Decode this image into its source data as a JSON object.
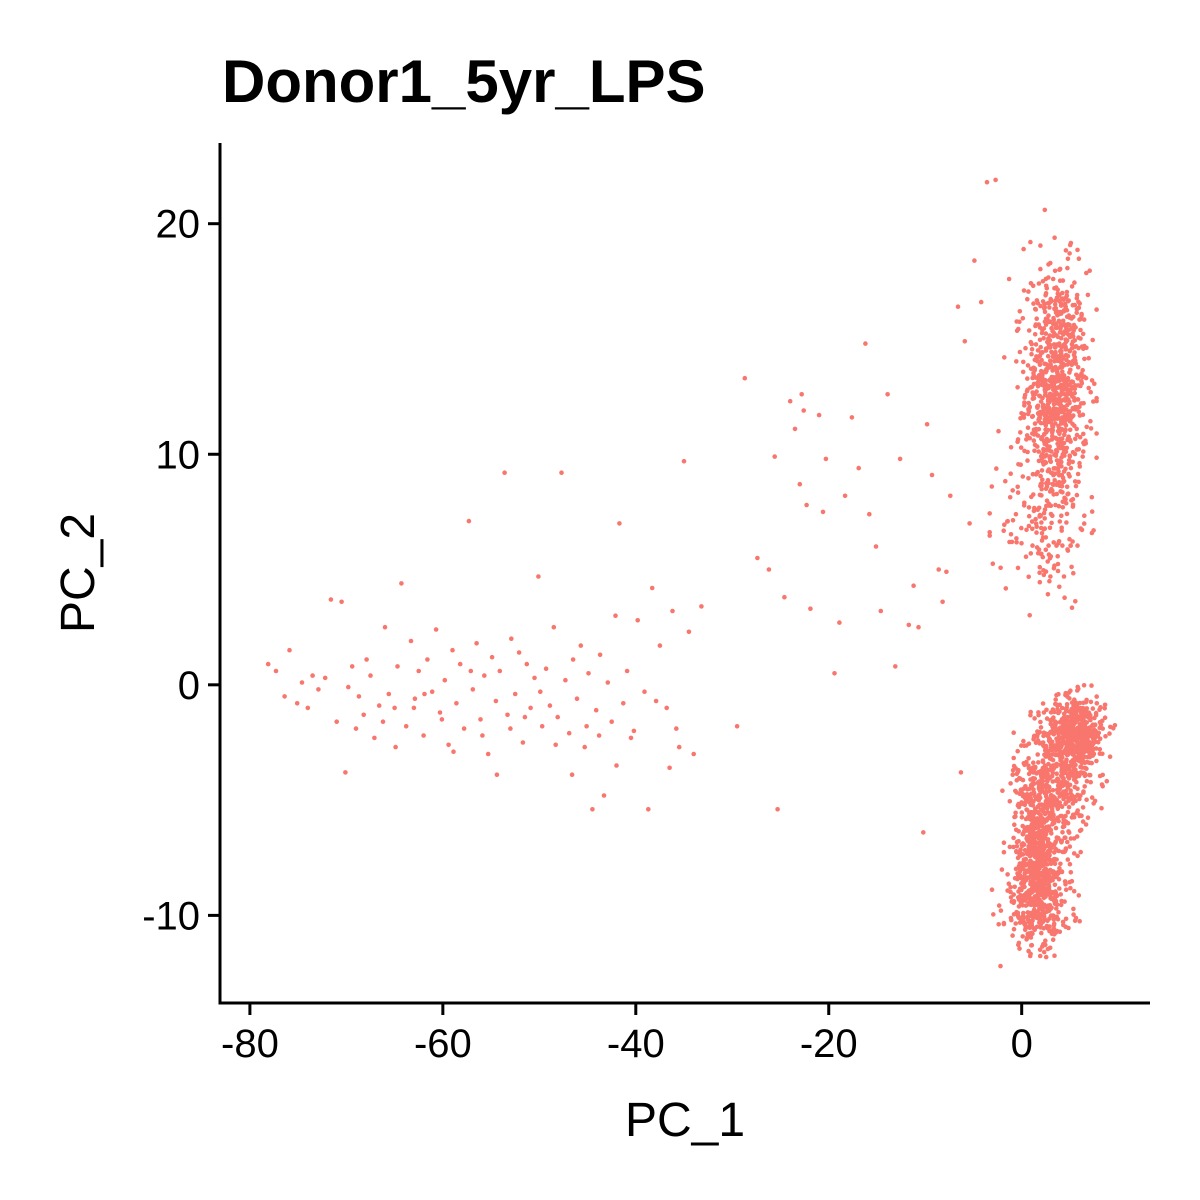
{
  "chart_data": {
    "type": "scatter",
    "title": "Donor1_5yr_LPS",
    "xlabel": "PC_1",
    "ylabel": "PC_2",
    "xlim": [
      -83.1,
      13.3
    ],
    "ylim": [
      -13.8,
      23.5
    ],
    "x_ticks": [
      -80,
      -60,
      -40,
      -20,
      0
    ],
    "y_ticks": [
      -10,
      0,
      10,
      20
    ],
    "x_tick_labels": [
      "-80",
      "-60",
      "-40",
      "-20",
      "0"
    ],
    "y_tick_labels": [
      "-10",
      "0",
      "10",
      "20"
    ],
    "grid": false,
    "legend": "none",
    "point_color": "#F8766D",
    "series": [
      {
        "points": [
          [
            -78.1,
            0.9
          ],
          [
            -77.3,
            0.6
          ],
          [
            -76.4,
            -0.5
          ],
          [
            -75.9,
            1.5
          ],
          [
            -75.1,
            -0.8
          ],
          [
            -74.6,
            0.1
          ],
          [
            -74.0,
            -1.0
          ],
          [
            -73.5,
            0.4
          ],
          [
            -72.9,
            -0.2
          ],
          [
            -72.2,
            0.3
          ],
          [
            -71.6,
            3.7
          ],
          [
            -71.0,
            -1.6
          ],
          [
            -70.5,
            3.6
          ],
          [
            -70.1,
            -3.8
          ],
          [
            -69.8,
            -0.1
          ],
          [
            -69.4,
            0.8
          ],
          [
            -68.7,
            -0.5
          ],
          [
            -68.2,
            -1.3
          ],
          [
            -67.5,
            0.4
          ],
          [
            -67.1,
            -2.3
          ],
          [
            -66.6,
            -0.9
          ],
          [
            -66.0,
            2.5
          ],
          [
            -65.6,
            -0.4
          ],
          [
            -65.0,
            -1.0
          ],
          [
            -64.7,
            0.8
          ],
          [
            -64.3,
            4.4
          ],
          [
            -63.8,
            -1.8
          ],
          [
            -63.3,
            1.9
          ],
          [
            -62.9,
            -0.6
          ],
          [
            -62.5,
            0.6
          ],
          [
            -62.0,
            -2.2
          ],
          [
            -61.6,
            1.1
          ],
          [
            -61.1,
            -0.3
          ],
          [
            -60.7,
            2.4
          ],
          [
            -60.3,
            -1.2
          ],
          [
            -59.8,
            0.2
          ],
          [
            -59.4,
            -2.6
          ],
          [
            -59.0,
            1.5
          ],
          [
            -58.6,
            -0.8
          ],
          [
            -58.2,
            0.9
          ],
          [
            -57.8,
            -1.9
          ],
          [
            -57.3,
            7.1
          ],
          [
            -56.9,
            -0.2
          ],
          [
            -56.5,
            1.8
          ],
          [
            -56.1,
            -1.5
          ],
          [
            -55.7,
            0.4
          ],
          [
            -55.3,
            -3.0
          ],
          [
            -54.9,
            1.2
          ],
          [
            -54.5,
            -0.7
          ],
          [
            -54.1,
            0.6
          ],
          [
            -53.6,
            9.2
          ],
          [
            -53.3,
            -1.3
          ],
          [
            -52.9,
            2.0
          ],
          [
            -52.5,
            -0.4
          ],
          [
            -52.1,
            1.4
          ],
          [
            -51.7,
            -2.5
          ],
          [
            -51.3,
            0.9
          ],
          [
            -50.9,
            -1.0
          ],
          [
            -50.5,
            0.3
          ],
          [
            -50.1,
            4.7
          ],
          [
            -49.7,
            -1.8
          ],
          [
            -49.3,
            0.7
          ],
          [
            -48.9,
            -0.9
          ],
          [
            -48.5,
            2.5
          ],
          [
            -48.1,
            -1.4
          ],
          [
            -47.7,
            9.2
          ],
          [
            -47.3,
            0.2
          ],
          [
            -46.9,
            -2.1
          ],
          [
            -46.5,
            1.1
          ],
          [
            -46.1,
            -0.6
          ],
          [
            -45.7,
            1.7
          ],
          [
            -45.3,
            -2.7
          ],
          [
            -44.9,
            0.5
          ],
          [
            -44.5,
            -5.4
          ],
          [
            -44.1,
            -1.1
          ],
          [
            -43.7,
            1.3
          ],
          [
            -43.3,
            -4.8
          ],
          [
            -42.9,
            0.1
          ],
          [
            -42.5,
            -1.6
          ],
          [
            -42.1,
            3.0
          ],
          [
            -41.7,
            7.0
          ],
          [
            -41.3,
            -0.8
          ],
          [
            -40.9,
            0.6
          ],
          [
            -40.5,
            -2.3
          ],
          [
            -39.8,
            2.8
          ],
          [
            -39.1,
            -0.3
          ],
          [
            -38.7,
            -5.4
          ],
          [
            -38.3,
            4.2
          ],
          [
            -37.5,
            1.7
          ],
          [
            -36.8,
            -1.0
          ],
          [
            -36.2,
            3.2
          ],
          [
            -35.5,
            -2.7
          ],
          [
            -35.0,
            9.7
          ],
          [
            -34.5,
            2.3
          ],
          [
            -34.0,
            -3.0
          ],
          [
            -33.2,
            3.4
          ],
          [
            -69.0,
            -1.9
          ],
          [
            -67.9,
            1.1
          ],
          [
            -66.2,
            -1.6
          ],
          [
            -64.9,
            -2.7
          ],
          [
            -63.0,
            -1.0
          ],
          [
            -61.9,
            -0.4
          ],
          [
            -60.1,
            -1.5
          ],
          [
            -58.9,
            -2.9
          ],
          [
            -57.1,
            0.6
          ],
          [
            -55.9,
            -2.2
          ],
          [
            -54.4,
            -3.9
          ],
          [
            -53.0,
            -1.9
          ],
          [
            -51.5,
            -1.4
          ],
          [
            -49.9,
            -0.3
          ],
          [
            -48.3,
            -2.6
          ],
          [
            -46.6,
            -3.9
          ],
          [
            -45.1,
            -1.8
          ],
          [
            -43.8,
            -2.2
          ],
          [
            -42.0,
            -3.5
          ],
          [
            -40.2,
            -2.0
          ],
          [
            -37.9,
            -0.7
          ],
          [
            -36.5,
            -3.6
          ],
          [
            -35.8,
            -1.9
          ],
          [
            -29.5,
            -1.8
          ],
          [
            -28.7,
            13.3
          ],
          [
            -27.4,
            5.5
          ],
          [
            -26.2,
            5.0
          ],
          [
            -25.6,
            9.9
          ],
          [
            -25.3,
            -5.4
          ],
          [
            -24.6,
            3.8
          ],
          [
            -24.0,
            12.3
          ],
          [
            -23.5,
            11.1
          ],
          [
            -23.0,
            8.7
          ],
          [
            -22.8,
            12.6
          ],
          [
            -22.6,
            11.9
          ],
          [
            -22.3,
            7.8
          ],
          [
            -21.9,
            3.3
          ],
          [
            -21.0,
            11.7
          ],
          [
            -20.6,
            7.5
          ],
          [
            -20.3,
            9.8
          ],
          [
            -19.4,
            0.5
          ],
          [
            -18.9,
            2.7
          ],
          [
            -18.3,
            8.2
          ],
          [
            -17.6,
            11.6
          ],
          [
            -16.9,
            9.4
          ],
          [
            -16.2,
            14.8
          ],
          [
            -15.8,
            7.4
          ],
          [
            -15.1,
            6.0
          ],
          [
            -14.6,
            3.2
          ],
          [
            -13.9,
            12.6
          ],
          [
            -13.1,
            0.8
          ],
          [
            -12.6,
            9.8
          ],
          [
            -11.7,
            2.6
          ],
          [
            -11.2,
            4.3
          ],
          [
            -10.7,
            2.5
          ],
          [
            -10.2,
            -6.4
          ],
          [
            -9.8,
            11.3
          ],
          [
            -9.3,
            9.1
          ],
          [
            -8.6,
            5.0
          ],
          [
            -8.2,
            3.6
          ],
          [
            -7.8,
            4.9
          ],
          [
            -7.4,
            8.2
          ],
          [
            -6.6,
            16.4
          ],
          [
            -6.3,
            -3.8
          ],
          [
            -5.9,
            14.9
          ],
          [
            -5.4,
            7.0
          ],
          [
            -4.9,
            18.4
          ],
          [
            -4.2,
            16.6
          ],
          [
            -3.6,
            21.8
          ],
          [
            -3.1,
            8.6
          ],
          [
            -2.7,
            21.9
          ],
          [
            -2.4,
            11.0
          ],
          [
            -2.2,
            -12.2
          ],
          [
            -1.8,
            14.2
          ],
          [
            -1.3,
            17.6
          ],
          [
            -1.1,
            10.3
          ],
          [
            -0.8,
            -10.6
          ],
          [
            -0.6,
            7.4
          ],
          [
            -0.2,
            16.2
          ],
          [
            0.2,
            18.9
          ],
          [
            0.4,
            14.6
          ],
          [
            0.6,
            12.8
          ],
          [
            0.9,
            19.2
          ],
          [
            1.1,
            10.9
          ],
          [
            1.4,
            16.3
          ],
          [
            1.7,
            12.1
          ],
          [
            1.9,
            15.5
          ],
          [
            2.1,
            9.3
          ],
          [
            2.4,
            20.6
          ],
          [
            2.6,
            17.2
          ],
          [
            2.8,
            11.4
          ],
          [
            3.0,
            13.9
          ],
          [
            3.3,
            15.9
          ],
          [
            3.5,
            7.8
          ],
          [
            3.7,
            12.6
          ],
          [
            3.9,
            14.8
          ],
          [
            4.2,
            11.6
          ],
          [
            4.4,
            10.2
          ],
          [
            4.6,
            16.8
          ],
          [
            4.8,
            13.3
          ],
          [
            5.1,
            9.4
          ],
          [
            5.3,
            12.0
          ],
          [
            5.5,
            14.2
          ],
          [
            5.7,
            11.1
          ],
          [
            5.9,
            8.8
          ],
          [
            6.2,
            13.5
          ],
          [
            6.4,
            10.5
          ]
        ]
      }
    ],
    "clusters": [
      {
        "cx": 3.6,
        "cy": 12.8,
        "sx": 1.6,
        "sy": 2.6,
        "n": 850
      },
      {
        "cx": 2.4,
        "cy": 7.0,
        "sx": 2.2,
        "sy": 1.8,
        "n": 140
      },
      {
        "cx": 5.5,
        "cy": -2.1,
        "sx": 1.6,
        "sy": 0.8,
        "n": 520
      },
      {
        "cx": 3.2,
        "cy": -4.3,
        "sx": 2.0,
        "sy": 1.2,
        "n": 420
      },
      {
        "cx": 1.8,
        "cy": -7.6,
        "sx": 1.4,
        "sy": 1.6,
        "n": 620
      },
      {
        "cx": 1.6,
        "cy": -9.6,
        "sx": 1.8,
        "sy": 0.9,
        "n": 180
      }
    ]
  }
}
